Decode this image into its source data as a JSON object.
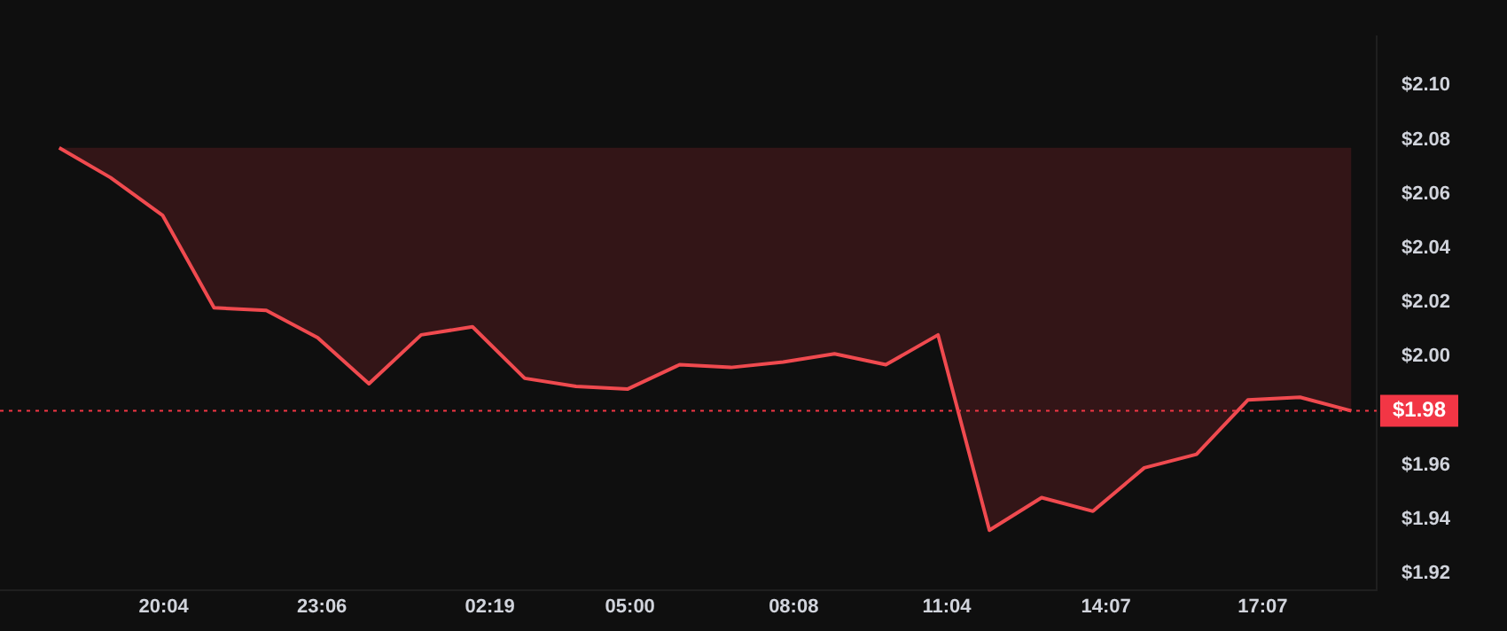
{
  "chart_data": {
    "type": "line",
    "x": [
      "--01-01T18:04",
      "--01-01T19:03",
      "--01-01T20:03",
      "--01-01T21:02",
      "--01-01T22:02",
      "--01-01T23:01",
      "--01-02T00:00",
      "--01-02T01:00",
      "--01-02T01:59",
      "--01-02T02:59",
      "--01-02T03:58",
      "--01-02T04:57",
      "--01-02T05:57",
      "--01-02T06:56",
      "--01-02T07:56",
      "--01-02T08:55",
      "--01-02T09:54",
      "--01-02T10:54",
      "--01-02T11:53",
      "--01-02T12:53",
      "--01-02T13:52",
      "--01-02T14:51",
      "--01-02T15:51",
      "--01-02T16:50",
      "--01-02T17:50",
      "--01-02T18:49"
    ],
    "series": [
      {
        "color": "#f04a4f",
        "values": [
          2.077,
          2.066,
          2.052,
          2.018,
          2.017,
          2.007,
          1.99,
          2.008,
          2.011,
          1.992,
          1.989,
          1.988,
          1.997,
          1.996,
          1.998,
          2.001,
          1.997,
          2.008,
          1.936,
          1.948,
          1.943,
          1.959,
          1.964,
          1.984,
          1.985,
          1.98
        ],
        "lower": [
          2.077,
          2.066,
          2.052,
          2.018,
          2.017,
          2.007,
          1.99,
          2.008,
          2.011,
          1.992,
          1.989,
          1.988,
          1.997,
          1.996,
          1.998,
          2.001,
          1.997,
          2.008,
          1.936,
          1.948,
          1.943,
          1.959,
          1.964,
          1.984,
          1.985,
          1.98
        ],
        "upper": [
          2.077,
          2.077,
          2.077,
          2.077,
          2.077,
          2.077,
          2.077,
          2.077,
          2.077,
          2.077,
          2.077,
          2.077,
          2.077,
          2.077,
          2.077,
          2.077,
          2.077,
          2.077,
          2.077,
          2.077,
          2.077,
          2.077,
          2.077,
          2.077,
          2.077,
          2.077
        ]
      }
    ],
    "xlim": [
      "--01-01T16:56",
      "--01-02T19:18"
    ],
    "xticks": [
      {
        "value": "--01-01T20:04",
        "label": "20:04"
      },
      {
        "value": "--01-01T23:06",
        "label": "23:06"
      },
      {
        "value": "--01-02T02:19",
        "label": "02:19"
      },
      {
        "value": "--01-02T05:00",
        "label": "05:00"
      },
      {
        "value": "--01-02T08:08",
        "label": "08:08"
      },
      {
        "value": "--01-02T11:04",
        "label": "11:04"
      },
      {
        "value": "--01-02T14:07",
        "label": "14:07"
      },
      {
        "value": "--01-02T17:07",
        "label": "17:07"
      }
    ],
    "ylim": [
      1.914,
      2.118
    ],
    "yticks": [
      {
        "value": 2.1,
        "label": "$2.10"
      },
      {
        "value": 2.08,
        "label": "$2.08"
      },
      {
        "value": 2.06,
        "label": "$2.06"
      },
      {
        "value": 2.04,
        "label": "$2.04"
      },
      {
        "value": 2.02,
        "label": "$2.02"
      },
      {
        "value": 2.0,
        "label": "$2.00"
      },
      {
        "value": 1.96,
        "label": "$1.96"
      },
      {
        "value": 1.94,
        "label": "$1.94"
      },
      {
        "value": 1.92,
        "label": "$1.92"
      }
    ],
    "ref_lines": [
      {
        "axis": "y",
        "value": 1.98,
        "label": "$1.98",
        "color": "#f23645",
        "line_style": "dotted"
      }
    ],
    "grid": false,
    "legend": false
  }
}
